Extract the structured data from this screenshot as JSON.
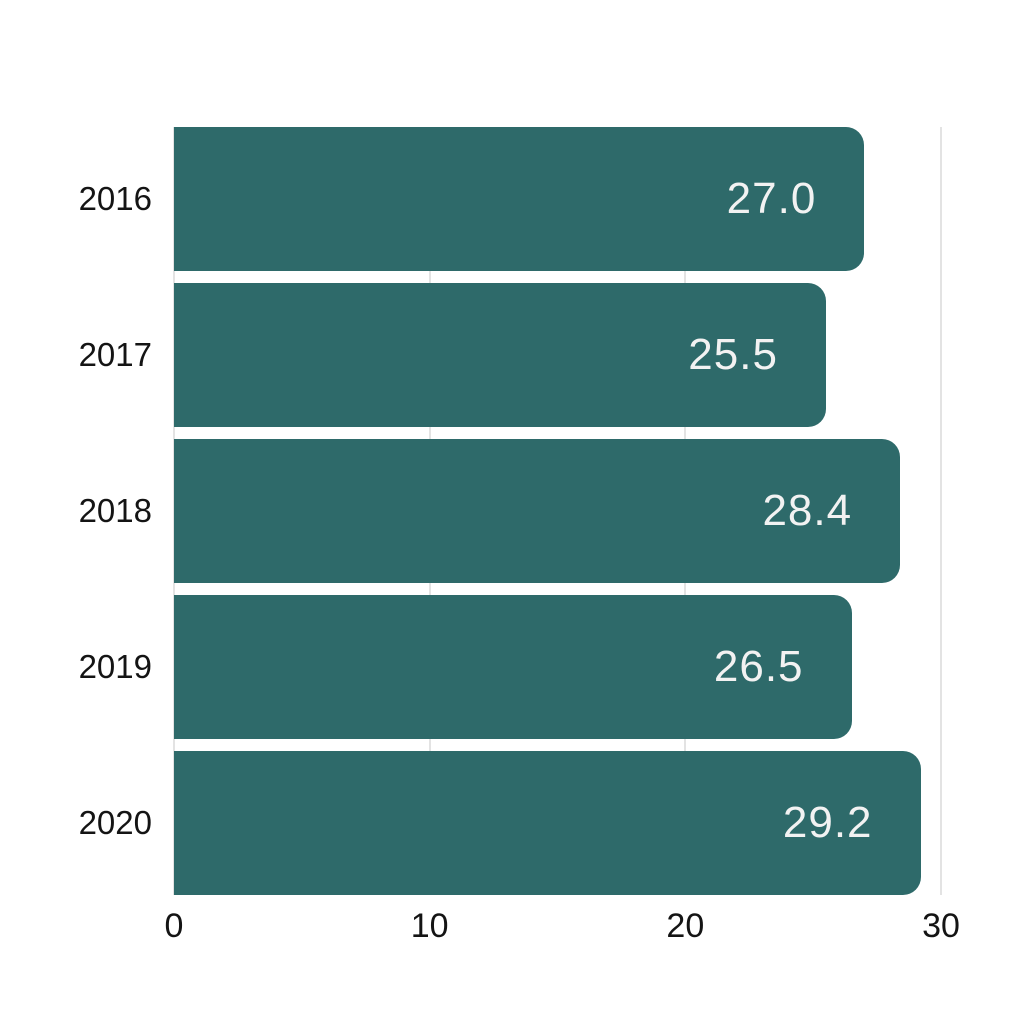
{
  "chart_data": {
    "type": "bar",
    "orientation": "horizontal",
    "title": "",
    "xlabel": "",
    "ylabel": "",
    "categories": [
      "2016",
      "2017",
      "2018",
      "2019",
      "2020"
    ],
    "values": [
      27.0,
      25.5,
      28.4,
      26.5,
      29.2
    ],
    "value_labels": [
      "27.0",
      "25.5",
      "28.4",
      "26.5",
      "29.2"
    ],
    "xlim": [
      0,
      30
    ],
    "xticks": [
      0,
      10,
      20,
      30
    ],
    "xtick_labels": [
      "0",
      "10",
      "20",
      "30"
    ],
    "grid": "vertical-gridlines-at-xticks",
    "legend": "none",
    "colors": {
      "bar": "#2E6A6A",
      "value_label": "#F2F2F2",
      "gridline": "#E3E3E3",
      "axis_text": "#141414",
      "background": "#FFFFFF"
    }
  }
}
